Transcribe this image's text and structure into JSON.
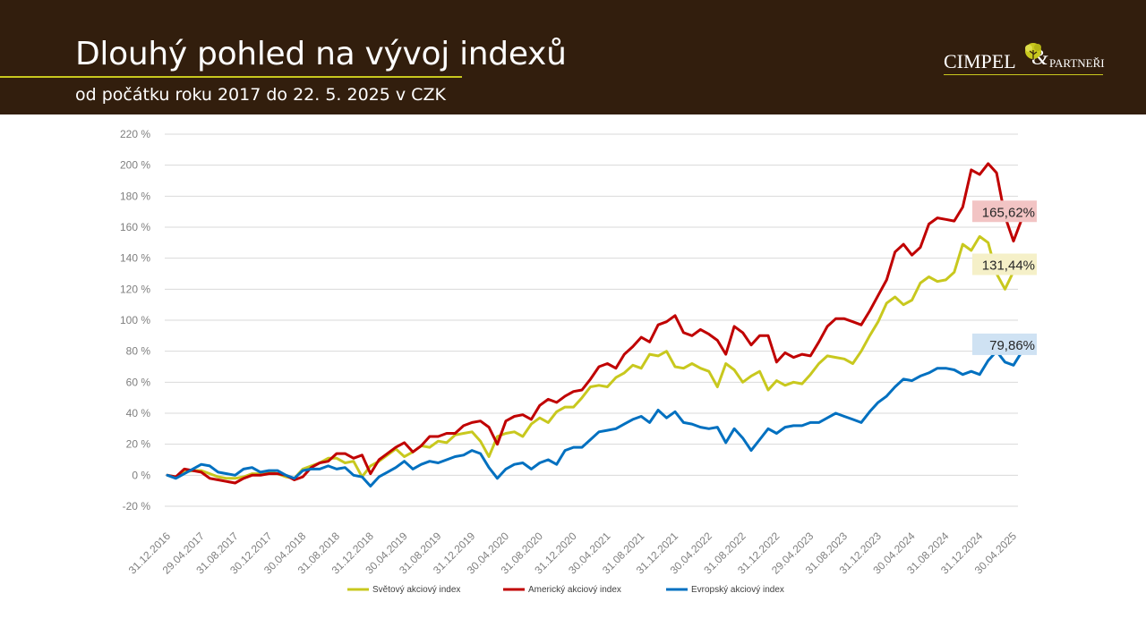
{
  "header": {
    "title": "Dlouhý pohled na vývoj indexů",
    "subtitle": "od počátku roku 2017 do 22. 5. 2025 v CZK",
    "logo": {
      "name": "CIMPEL",
      "ampersand": "&",
      "partner": "PARTNEŘI",
      "icon": "tree-leaf-icon"
    }
  },
  "colors": {
    "header_bg": "#321e0d",
    "accent": "#c8c81e"
  },
  "chart_data": {
    "type": "line",
    "title": "",
    "xlabel": "",
    "ylabel": "",
    "ylim": [
      -20,
      220
    ],
    "y_ticks": [
      -20,
      0,
      20,
      40,
      60,
      80,
      100,
      120,
      140,
      160,
      180,
      200,
      220
    ],
    "y_tick_labels": [
      "-20 %",
      "0 %",
      "20 %",
      "40 %",
      "60 %",
      "80 %",
      "100 %",
      "120 %",
      "140 %",
      "160 %",
      "180 %",
      "200 %",
      "220 %"
    ],
    "x_ticks": [
      0,
      4,
      8,
      12,
      16,
      20,
      24,
      28,
      32,
      36,
      40,
      44,
      48,
      52,
      56,
      60,
      64,
      68,
      72,
      76,
      80,
      84,
      88,
      92,
      96,
      100
    ],
    "x_tick_labels": [
      "31.12.2016",
      "29.04.2017",
      "31.08.2017",
      "30.12.2017",
      "30.04.2018",
      "31.08.2018",
      "31.12.2018",
      "30.04.2019",
      "31.08.2019",
      "31.12.2019",
      "30.04.2020",
      "31.08.2020",
      "31.12.2020",
      "30.04.2021",
      "31.08.2021",
      "31.12.2021",
      "30.04.2022",
      "31.08.2022",
      "31.12.2022",
      "29.04.2023",
      "31.08.2023",
      "31.12.2023",
      "30.04.2024",
      "31.08.2024",
      "31.12.2024",
      "30.04.2025"
    ],
    "grid": true,
    "legend_position": "bottom",
    "series": [
      {
        "name": "Světový akciový index",
        "color": "#c8c81e",
        "end_label": "131,44%",
        "end_label_bg": "#f5f0c8",
        "values": [
          0,
          -1,
          2,
          3,
          3,
          1,
          -1,
          -2,
          -2,
          -1,
          1,
          1,
          2,
          1,
          -1,
          -2,
          4,
          6,
          8,
          11,
          11,
          8,
          9,
          -1,
          6,
          9,
          13,
          17,
          12,
          15,
          19,
          18,
          22,
          21,
          26,
          27,
          28,
          22,
          12,
          25,
          27,
          28,
          25,
          33,
          37,
          34,
          41,
          44,
          44,
          50,
          57,
          58,
          57,
          63,
          66,
          71,
          69,
          78,
          77,
          80,
          70,
          69,
          72,
          69,
          67,
          57,
          72,
          68,
          60,
          64,
          67,
          55,
          61,
          58,
          60,
          59,
          65,
          72,
          77,
          76,
          75,
          72,
          80,
          90,
          99,
          111,
          115,
          110,
          113,
          124,
          128,
          125,
          126,
          131,
          149,
          145,
          154,
          150,
          130,
          120,
          131.44
        ]
      },
      {
        "name": "Americký akciový index",
        "color": "#c00000",
        "end_label": "165,62%",
        "end_label_bg": "#f2c4c4",
        "values": [
          0,
          -1,
          4,
          3,
          2,
          -2,
          -3,
          -4,
          -5,
          -2,
          0,
          0,
          1,
          1,
          0,
          -3,
          -1,
          5,
          8,
          9,
          14,
          14,
          11,
          13,
          1,
          10,
          14,
          18,
          21,
          15,
          19,
          25,
          25,
          27,
          27,
          32,
          34,
          35,
          31,
          20,
          35,
          38,
          39,
          36,
          45,
          49,
          47,
          51,
          54,
          55,
          62,
          70,
          72,
          69,
          78,
          83,
          89,
          86,
          97,
          99,
          103,
          92,
          90,
          94,
          91,
          87,
          78,
          96,
          92,
          84,
          90,
          90,
          73,
          79,
          76,
          78,
          77,
          86,
          96,
          101,
          101,
          99,
          97,
          106,
          116,
          126,
          144,
          149,
          142,
          147,
          162,
          166,
          165,
          164,
          173,
          197,
          194,
          201,
          195,
          167,
          151,
          165.62
        ]
      },
      {
        "name": "Evropský akciový index",
        "color": "#0070c0",
        "end_label": "79,86%",
        "end_label_bg": "#cfe2f3",
        "values": [
          0,
          -2,
          1,
          4,
          7,
          6,
          2,
          1,
          0,
          4,
          5,
          2,
          3,
          3,
          0,
          -2,
          3,
          4,
          4,
          6,
          4,
          5,
          0,
          -1,
          -7,
          -1,
          2,
          5,
          9,
          4,
          7,
          9,
          8,
          10,
          12,
          13,
          16,
          14,
          5,
          -2,
          4,
          7,
          8,
          4,
          8,
          10,
          7,
          16,
          18,
          18,
          23,
          28,
          29,
          30,
          33,
          36,
          38,
          34,
          42,
          37,
          41,
          34,
          33,
          31,
          30,
          31,
          21,
          30,
          24,
          16,
          23,
          30,
          27,
          31,
          32,
          32,
          34,
          34,
          37,
          40,
          38,
          36,
          34,
          41,
          47,
          51,
          57,
          62,
          61,
          64,
          66,
          69,
          69,
          68,
          65,
          67,
          65,
          74,
          80,
          73,
          71,
          79.86
        ]
      }
    ]
  }
}
